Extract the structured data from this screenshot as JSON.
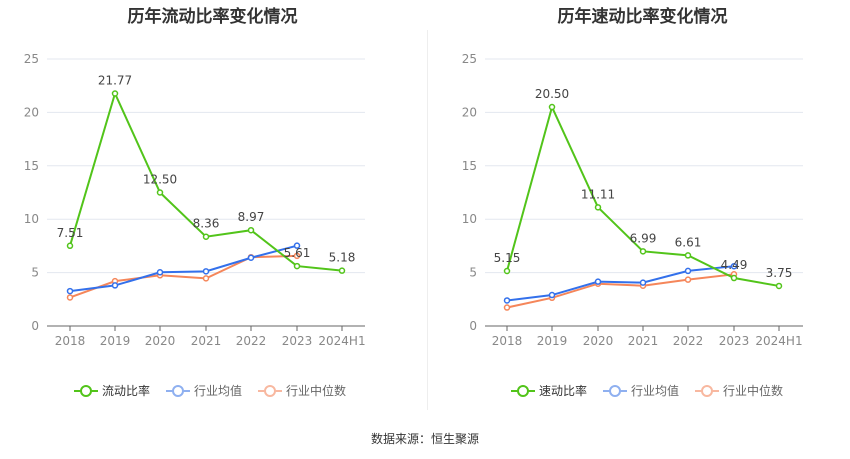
{
  "chart_data": [
    {
      "type": "line",
      "title": "历年流动比率变化情况",
      "categories": [
        "2018",
        "2019",
        "2020",
        "2021",
        "2022",
        "2023",
        "2024H1"
      ],
      "ylim": [
        0,
        25
      ],
      "yticks": [
        0,
        5,
        10,
        15,
        20,
        25
      ],
      "series": [
        {
          "name": "流动比率",
          "color": "#52c41a",
          "values": [
            7.51,
            21.77,
            12.5,
            8.36,
            8.97,
            5.61,
            5.18
          ],
          "labels": [
            "7.51",
            "21.77",
            "12.50",
            "8.36",
            "8.97",
            "5.61",
            "5.18"
          ]
        },
        {
          "name": "行业均值",
          "color": "#3370eb",
          "values": [
            3.27,
            3.8,
            5.03,
            5.12,
            6.39,
            7.52,
            null
          ]
        },
        {
          "name": "行业中位数",
          "color": "#f5865a",
          "values": [
            2.67,
            4.2,
            4.75,
            4.46,
            6.44,
            6.57,
            null
          ]
        }
      ]
    },
    {
      "type": "line",
      "title": "历年速动比率变化情况",
      "categories": [
        "2018",
        "2019",
        "2020",
        "2021",
        "2022",
        "2023",
        "2024H1"
      ],
      "ylim": [
        0,
        25
      ],
      "yticks": [
        0,
        5,
        10,
        15,
        20,
        25
      ],
      "series": [
        {
          "name": "速动比率",
          "color": "#52c41a",
          "values": [
            5.15,
            20.5,
            11.11,
            6.99,
            6.61,
            4.49,
            3.75
          ],
          "labels": [
            "5.15",
            "20.50",
            "11.11",
            "6.99",
            "6.61",
            "4.49",
            "3.75"
          ]
        },
        {
          "name": "行业均值",
          "color": "#3370eb",
          "values": [
            2.39,
            2.9,
            4.15,
            4.06,
            5.16,
            5.6,
            null
          ]
        },
        {
          "name": "行业中位数",
          "color": "#f5865a",
          "values": [
            1.73,
            2.64,
            3.96,
            3.77,
            4.34,
            4.84,
            null
          ]
        }
      ]
    }
  ],
  "source": "数据来源：恒生聚源"
}
